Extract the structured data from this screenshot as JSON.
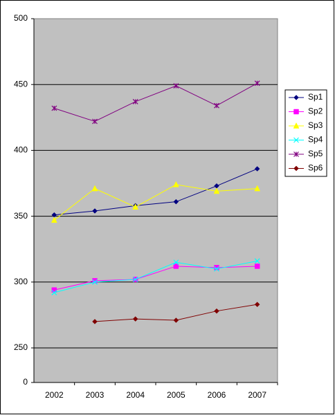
{
  "chart_data": {
    "type": "line",
    "categories": [
      "2002",
      "2003",
      "2004",
      "2005",
      "2006",
      "2007"
    ],
    "series": [
      {
        "name": "Sp1",
        "color": "#000080",
        "marker": "diamond",
        "values": [
          351,
          354,
          358,
          361,
          373,
          386
        ]
      },
      {
        "name": "Sp2",
        "color": "#ff00ff",
        "marker": "square",
        "values": [
          294,
          301,
          302,
          312,
          311,
          312
        ]
      },
      {
        "name": "Sp3",
        "color": "#ffff00",
        "marker": "triangle",
        "values": [
          347,
          371,
          357,
          374,
          369,
          371
        ]
      },
      {
        "name": "Sp4",
        "color": "#00ffff",
        "marker": "x",
        "values": [
          292,
          300,
          302,
          315,
          310,
          316
        ]
      },
      {
        "name": "Sp5",
        "color": "#800080",
        "marker": "asterisk",
        "values": [
          432,
          422,
          437,
          449,
          434,
          451
        ]
      },
      {
        "name": "Sp6",
        "color": "#800000",
        "marker": "diamond",
        "values": [
          null,
          270,
          272,
          271,
          278,
          283
        ]
      }
    ],
    "ylim": [
      0,
      500
    ],
    "yticks": [
      0,
      250,
      300,
      350,
      400,
      450,
      500
    ],
    "axis_break": true,
    "grid": true,
    "legend": "right"
  }
}
